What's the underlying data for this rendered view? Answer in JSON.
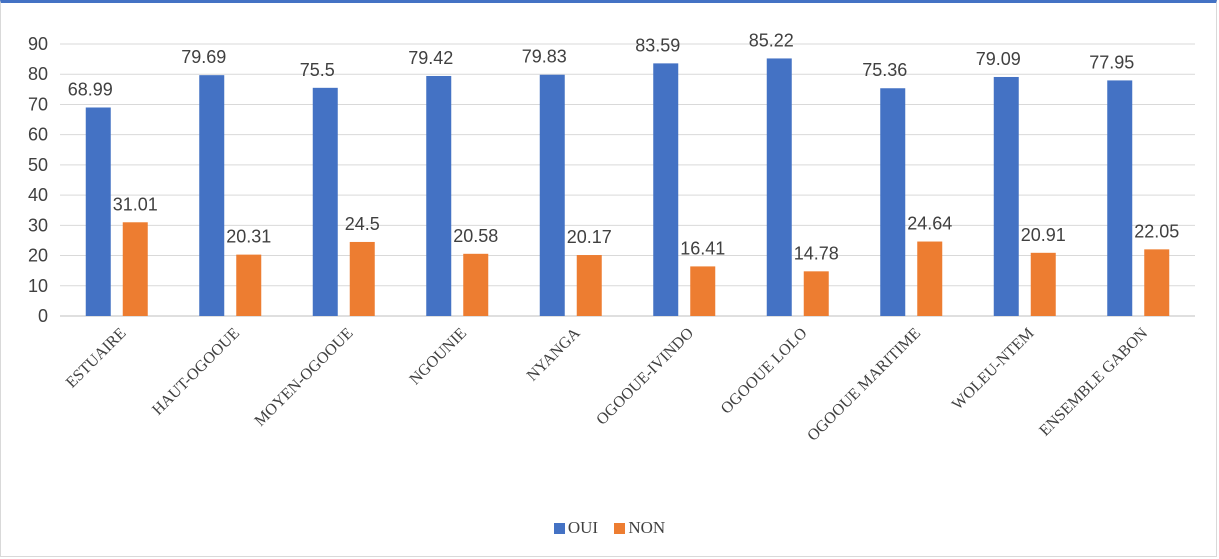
{
  "chart_data": {
    "type": "bar",
    "categories": [
      "ESTUAIRE",
      "HAUT-OGOOUE",
      "MOYEN-OGOOUE",
      "NGOUNIE",
      "NYANGA",
      "OGOOUE-IVINDO",
      "OGOOUE LOLO",
      "OGOOUE MARITIME",
      "WOLEU-NTEM",
      "ENSEMBLE GABON"
    ],
    "series": [
      {
        "name": "OUI",
        "color": "#4472c4",
        "values": [
          68.99,
          79.69,
          75.5,
          79.42,
          79.83,
          83.59,
          85.22,
          75.36,
          79.09,
          77.95
        ]
      },
      {
        "name": "NON",
        "color": "#ed7d31",
        "values": [
          31.01,
          20.31,
          24.5,
          20.58,
          20.17,
          16.41,
          14.78,
          24.64,
          20.91,
          22.05
        ]
      }
    ],
    "ylim": [
      0,
      90
    ],
    "yticks": [
      0,
      10,
      20,
      30,
      40,
      50,
      60,
      70,
      80,
      90
    ],
    "grid": true,
    "legend": "bottom"
  }
}
